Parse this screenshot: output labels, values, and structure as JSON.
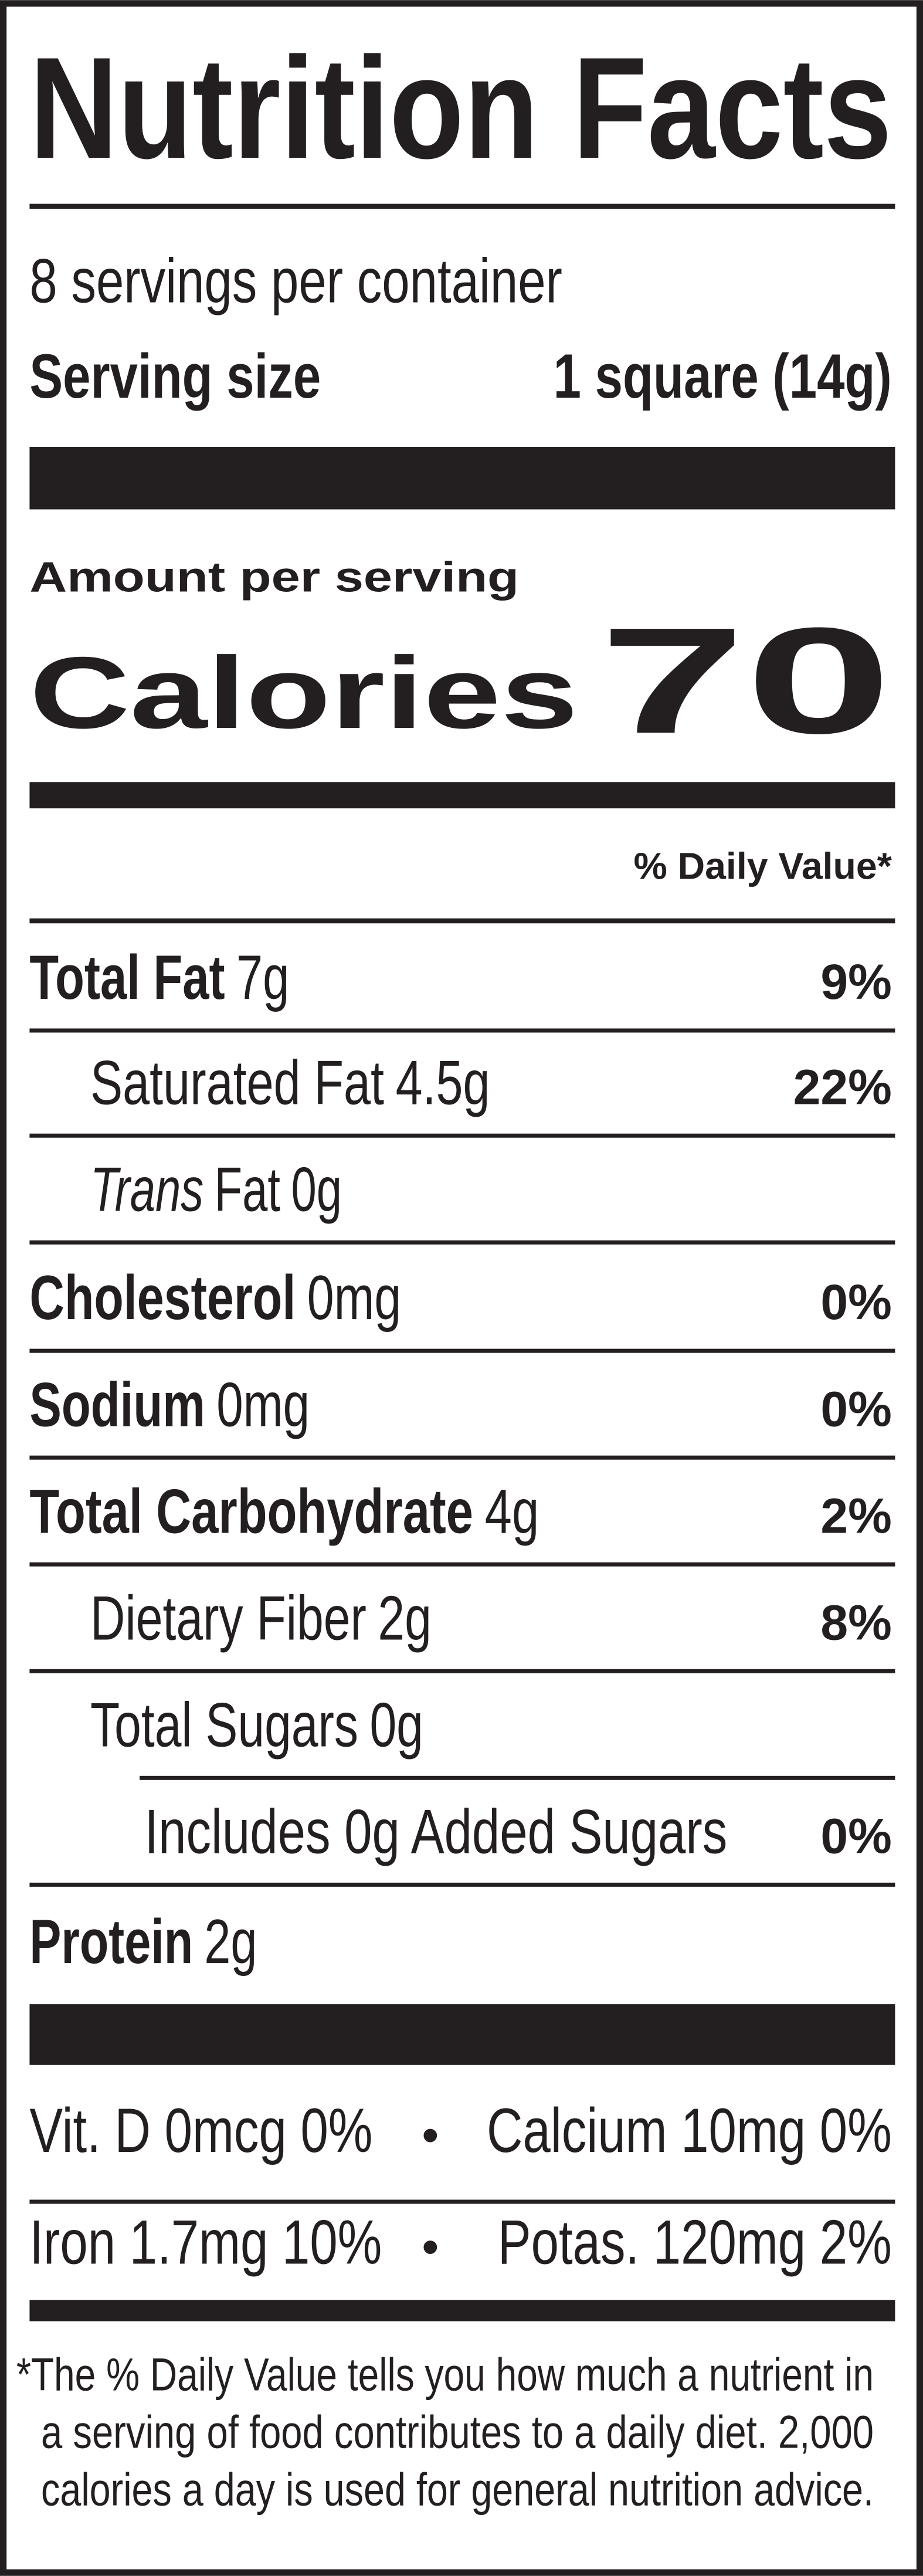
{
  "title": "Nutrition Facts",
  "servings": "8 servings per container",
  "serving_size": {
    "label": "Serving size",
    "value": "1 square (14g)"
  },
  "amount_per_serving": "Amount per serving",
  "calories": {
    "label": "Calories",
    "value": "70"
  },
  "daily_value_header": "% Daily Value*",
  "nutrients": [
    {
      "name": "Total Fat",
      "amount": "7g",
      "dv": "9%"
    },
    {
      "name": "Saturated Fat",
      "amount": "4.5g",
      "dv": "22%"
    },
    {
      "name_italic": "Trans",
      "name": "Fat",
      "amount": "0g"
    },
    {
      "name": "Cholesterol",
      "amount": "0mg",
      "dv": "0%"
    },
    {
      "name": "Sodium",
      "amount": "0mg",
      "dv": "0%"
    },
    {
      "name": "Total Carbohydrate",
      "amount": "4g",
      "dv": "2%"
    },
    {
      "name": "Dietary Fiber",
      "amount": "2g",
      "dv": "8%"
    },
    {
      "name": "Total Sugars",
      "amount": "0g"
    },
    {
      "name": "Includes 0g Added Sugars",
      "dv": "0%"
    },
    {
      "name": "Protein",
      "amount": "2g"
    }
  ],
  "vitamins": {
    "separator": "•",
    "rows": [
      {
        "left": "Vit. D 0mcg 0%",
        "right": "Calcium 10mg 0%"
      },
      {
        "left": "Iron 1.7mg 10%",
        "right": "Potas. 120mg 2%"
      }
    ]
  },
  "footnote": [
    "*The % Daily Value tells you how much a nutrient in",
    "a serving of food contributes to a daily diet. 2,000",
    "calories a day is used for general nutrition advice."
  ]
}
